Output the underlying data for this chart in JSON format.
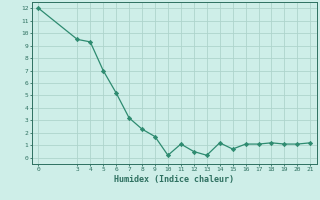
{
  "x": [
    0,
    3,
    4,
    5,
    6,
    7,
    8,
    9,
    10,
    11,
    12,
    13,
    14,
    15,
    16,
    17,
    18,
    19,
    20,
    21
  ],
  "y": [
    12,
    9.5,
    9.3,
    7.0,
    5.2,
    3.2,
    2.3,
    1.7,
    0.2,
    1.1,
    0.5,
    0.2,
    1.2,
    0.7,
    1.1,
    1.1,
    1.2,
    1.1,
    1.1,
    1.2
  ],
  "line_color": "#2e8b70",
  "marker": "D",
  "marker_size": 2.2,
  "bg_color": "#ceeee8",
  "grid_color": "#aed4cc",
  "tick_color": "#2e7060",
  "xlabel": "Humidex (Indice chaleur)",
  "xlim": [
    -0.5,
    21.5
  ],
  "ylim": [
    -0.5,
    12.5
  ],
  "yticks": [
    0,
    1,
    2,
    3,
    4,
    5,
    6,
    7,
    8,
    9,
    10,
    11,
    12
  ],
  "xticks": [
    0,
    3,
    4,
    5,
    6,
    7,
    8,
    9,
    10,
    11,
    12,
    13,
    14,
    15,
    16,
    17,
    18,
    19,
    20,
    21
  ]
}
